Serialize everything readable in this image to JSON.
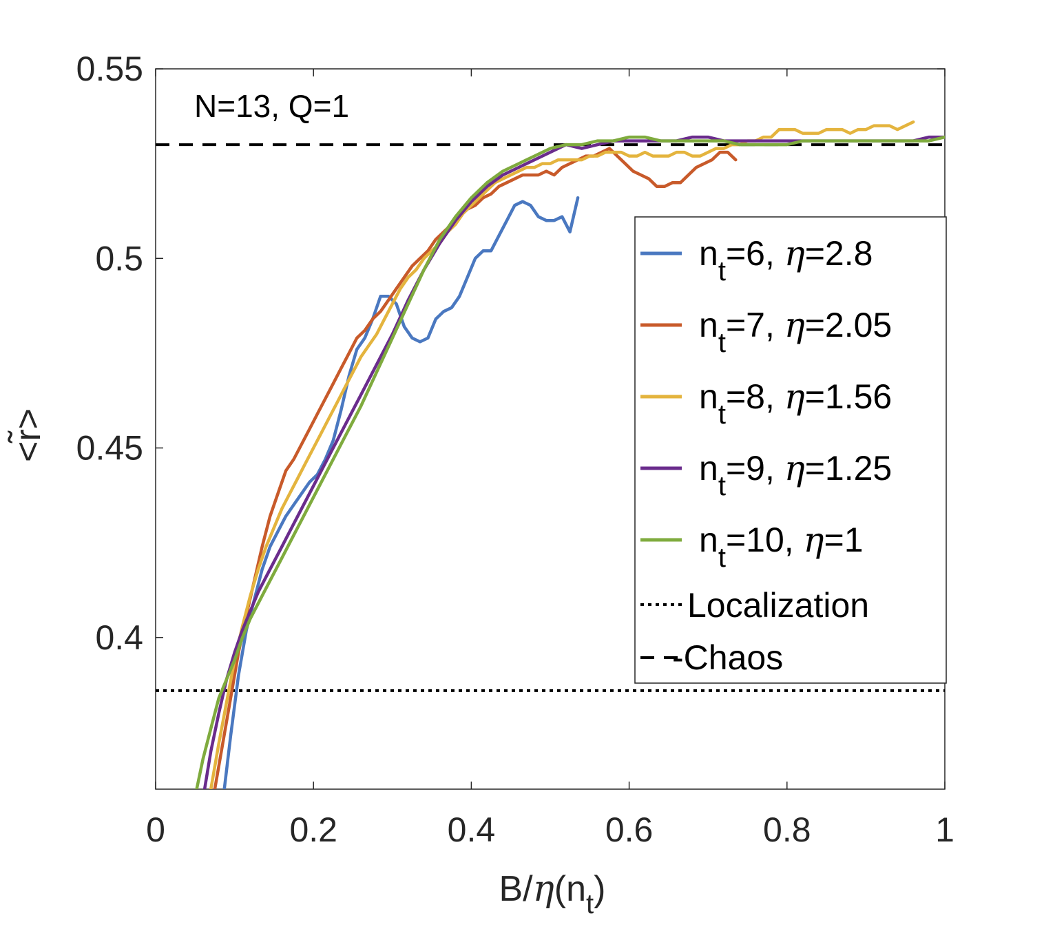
{
  "chart_data": {
    "type": "line",
    "xlabel": {
      "prefix": "B/",
      "eta": "η",
      "mid": "(n",
      "sub": "t",
      "suffix": ")"
    },
    "ylabel": "<r̃>",
    "xlim": [
      0,
      1
    ],
    "ylim": [
      0.36,
      0.55
    ],
    "xticks": [
      0,
      0.2,
      0.4,
      0.6,
      0.8,
      1
    ],
    "xtick_labels": [
      "0",
      "0.2",
      "0.4",
      "0.6",
      "0.8",
      "1"
    ],
    "yticks": [
      0.4,
      0.45,
      0.5,
      0.55
    ],
    "ytick_labels": [
      "0.4",
      "0.45",
      "0.5",
      "0.55"
    ],
    "annotation": "N=13, Q=1",
    "legend_position": "center-right",
    "reference_lines": [
      {
        "name": "Localization",
        "label": "Localization",
        "y": 0.386,
        "style": "dotted",
        "color": "#000000"
      },
      {
        "name": "Chaos",
        "label": "Chaos",
        "legend_extra": "-",
        "y": 0.53,
        "style": "dashed",
        "color": "#000000"
      }
    ],
    "series": [
      {
        "name": "nt=6",
        "label_pre": "n",
        "label_sub": "t",
        "label_mid": "=6, ",
        "eta": "η",
        "label_post": "=2.8",
        "color": "#4a78c0",
        "x": [
          0.087,
          0.095,
          0.105,
          0.115,
          0.125,
          0.135,
          0.145,
          0.155,
          0.165,
          0.175,
          0.185,
          0.195,
          0.205,
          0.215,
          0.225,
          0.235,
          0.245,
          0.255,
          0.265,
          0.275,
          0.285,
          0.295,
          0.305,
          0.315,
          0.325,
          0.335,
          0.345,
          0.355,
          0.365,
          0.375,
          0.385,
          0.395,
          0.405,
          0.415,
          0.425,
          0.435,
          0.445,
          0.455,
          0.465,
          0.475,
          0.485,
          0.495,
          0.505,
          0.515,
          0.525,
          0.535
        ],
        "y": [
          0.36,
          0.374,
          0.39,
          0.402,
          0.41,
          0.418,
          0.424,
          0.428,
          0.432,
          0.435,
          0.438,
          0.441,
          0.443,
          0.447,
          0.452,
          0.46,
          0.469,
          0.476,
          0.479,
          0.484,
          0.49,
          0.49,
          0.488,
          0.482,
          0.479,
          0.478,
          0.479,
          0.484,
          0.486,
          0.487,
          0.49,
          0.495,
          0.5,
          0.502,
          0.502,
          0.506,
          0.51,
          0.514,
          0.515,
          0.514,
          0.511,
          0.51,
          0.51,
          0.511,
          0.507,
          0.516
        ]
      },
      {
        "name": "nt=7",
        "label_pre": "n",
        "label_sub": "t",
        "label_mid": "=7, ",
        "eta": "η",
        "label_post": "=2.05",
        "color": "#c85a2a",
        "x": [
          0.075,
          0.085,
          0.095,
          0.105,
          0.115,
          0.125,
          0.135,
          0.145,
          0.155,
          0.165,
          0.175,
          0.185,
          0.195,
          0.205,
          0.215,
          0.225,
          0.235,
          0.245,
          0.255,
          0.265,
          0.275,
          0.285,
          0.295,
          0.305,
          0.315,
          0.325,
          0.335,
          0.345,
          0.355,
          0.365,
          0.375,
          0.385,
          0.395,
          0.405,
          0.415,
          0.425,
          0.435,
          0.445,
          0.455,
          0.465,
          0.475,
          0.485,
          0.495,
          0.505,
          0.515,
          0.525,
          0.535,
          0.545,
          0.555,
          0.565,
          0.575,
          0.585,
          0.595,
          0.605,
          0.615,
          0.625,
          0.635,
          0.645,
          0.655,
          0.665,
          0.675,
          0.685,
          0.695,
          0.705,
          0.715,
          0.725,
          0.735
        ],
        "y": [
          0.36,
          0.372,
          0.384,
          0.396,
          0.406,
          0.415,
          0.424,
          0.432,
          0.438,
          0.444,
          0.447,
          0.451,
          0.455,
          0.459,
          0.463,
          0.467,
          0.471,
          0.475,
          0.479,
          0.481,
          0.484,
          0.486,
          0.489,
          0.492,
          0.495,
          0.498,
          0.5,
          0.502,
          0.505,
          0.507,
          0.509,
          0.511,
          0.513,
          0.514,
          0.516,
          0.517,
          0.519,
          0.52,
          0.521,
          0.522,
          0.522,
          0.522,
          0.523,
          0.522,
          0.524,
          0.525,
          0.526,
          0.527,
          0.527,
          0.528,
          0.529,
          0.527,
          0.525,
          0.523,
          0.522,
          0.521,
          0.519,
          0.519,
          0.52,
          0.52,
          0.522,
          0.524,
          0.525,
          0.526,
          0.528,
          0.528,
          0.526
        ]
      },
      {
        "name": "nt=8",
        "label_pre": "n",
        "label_sub": "t",
        "label_mid": "=8, ",
        "eta": "η",
        "label_post": "=1.56",
        "color": "#e4b43e",
        "x": [
          0.07,
          0.08,
          0.09,
          0.1,
          0.11,
          0.12,
          0.13,
          0.14,
          0.15,
          0.16,
          0.17,
          0.18,
          0.19,
          0.2,
          0.21,
          0.22,
          0.23,
          0.24,
          0.25,
          0.26,
          0.27,
          0.28,
          0.29,
          0.3,
          0.31,
          0.32,
          0.33,
          0.34,
          0.35,
          0.36,
          0.37,
          0.38,
          0.39,
          0.4,
          0.41,
          0.42,
          0.43,
          0.44,
          0.45,
          0.46,
          0.47,
          0.48,
          0.49,
          0.5,
          0.51,
          0.52,
          0.53,
          0.54,
          0.55,
          0.56,
          0.57,
          0.58,
          0.59,
          0.6,
          0.61,
          0.62,
          0.63,
          0.64,
          0.65,
          0.66,
          0.67,
          0.68,
          0.69,
          0.7,
          0.71,
          0.72,
          0.73,
          0.74,
          0.75,
          0.76,
          0.77,
          0.78,
          0.79,
          0.8,
          0.81,
          0.82,
          0.83,
          0.84,
          0.85,
          0.86,
          0.87,
          0.88,
          0.89,
          0.9,
          0.91,
          0.92,
          0.93,
          0.94,
          0.95,
          0.96
        ],
        "y": [
          0.36,
          0.372,
          0.383,
          0.394,
          0.403,
          0.411,
          0.418,
          0.424,
          0.429,
          0.434,
          0.438,
          0.442,
          0.446,
          0.45,
          0.454,
          0.458,
          0.462,
          0.466,
          0.47,
          0.474,
          0.477,
          0.48,
          0.484,
          0.488,
          0.492,
          0.495,
          0.497,
          0.5,
          0.502,
          0.504,
          0.507,
          0.509,
          0.512,
          0.514,
          0.516,
          0.518,
          0.52,
          0.521,
          0.522,
          0.523,
          0.524,
          0.524,
          0.525,
          0.525,
          0.526,
          0.526,
          0.526,
          0.526,
          0.527,
          0.527,
          0.528,
          0.528,
          0.528,
          0.527,
          0.527,
          0.528,
          0.527,
          0.527,
          0.527,
          0.528,
          0.528,
          0.527,
          0.527,
          0.528,
          0.529,
          0.529,
          0.53,
          0.53,
          0.531,
          0.531,
          0.532,
          0.532,
          0.534,
          0.534,
          0.534,
          0.533,
          0.533,
          0.533,
          0.534,
          0.534,
          0.534,
          0.533,
          0.534,
          0.534,
          0.535,
          0.535,
          0.535,
          0.534,
          0.535,
          0.536
        ]
      },
      {
        "name": "nt=9",
        "label_pre": "n",
        "label_sub": "t",
        "label_mid": "=9, ",
        "eta": "η",
        "label_post": "=1.25",
        "color": "#6a2c8c",
        "x": [
          0.062,
          0.07,
          0.08,
          0.09,
          0.1,
          0.11,
          0.12,
          0.13,
          0.14,
          0.15,
          0.16,
          0.17,
          0.18,
          0.2,
          0.22,
          0.24,
          0.26,
          0.28,
          0.3,
          0.32,
          0.34,
          0.36,
          0.38,
          0.4,
          0.42,
          0.44,
          0.46,
          0.48,
          0.5,
          0.52,
          0.54,
          0.56,
          0.58,
          0.6,
          0.62,
          0.64,
          0.66,
          0.68,
          0.7,
          0.72,
          0.74,
          0.76,
          0.78,
          0.8,
          0.82,
          0.84,
          0.86,
          0.88,
          0.9,
          0.92,
          0.94,
          0.96,
          0.98,
          1.0
        ],
        "y": [
          0.36,
          0.37,
          0.38,
          0.389,
          0.396,
          0.402,
          0.407,
          0.412,
          0.416,
          0.42,
          0.424,
          0.428,
          0.432,
          0.44,
          0.448,
          0.456,
          0.464,
          0.472,
          0.48,
          0.489,
          0.497,
          0.504,
          0.51,
          0.515,
          0.519,
          0.522,
          0.524,
          0.526,
          0.528,
          0.53,
          0.529,
          0.53,
          0.531,
          0.531,
          0.531,
          0.531,
          0.531,
          0.532,
          0.532,
          0.531,
          0.531,
          0.531,
          0.531,
          0.531,
          0.531,
          0.531,
          0.531,
          0.531,
          0.531,
          0.531,
          0.531,
          0.531,
          0.532,
          0.532
        ]
      },
      {
        "name": "nt=10",
        "label_pre": "n",
        "label_sub": "t",
        "label_mid": "=10, ",
        "eta": "η",
        "label_post": "=1",
        "color": "#7fab3e",
        "x": [
          0.052,
          0.06,
          0.07,
          0.08,
          0.09,
          0.1,
          0.11,
          0.12,
          0.13,
          0.14,
          0.15,
          0.16,
          0.17,
          0.18,
          0.2,
          0.22,
          0.24,
          0.26,
          0.28,
          0.3,
          0.32,
          0.34,
          0.36,
          0.38,
          0.4,
          0.42,
          0.44,
          0.46,
          0.48,
          0.5,
          0.52,
          0.54,
          0.56,
          0.58,
          0.6,
          0.62,
          0.64,
          0.66,
          0.68,
          0.7,
          0.72,
          0.74,
          0.76,
          0.78,
          0.8,
          0.82,
          0.84,
          0.86,
          0.88,
          0.9,
          0.92,
          0.94,
          0.96,
          0.98,
          1.0
        ],
        "y": [
          0.36,
          0.368,
          0.376,
          0.384,
          0.389,
          0.394,
          0.4,
          0.405,
          0.409,
          0.413,
          0.417,
          0.421,
          0.425,
          0.429,
          0.437,
          0.445,
          0.453,
          0.461,
          0.47,
          0.479,
          0.488,
          0.497,
          0.505,
          0.511,
          0.516,
          0.52,
          0.523,
          0.525,
          0.527,
          0.529,
          0.53,
          0.53,
          0.531,
          0.531,
          0.532,
          0.532,
          0.531,
          0.531,
          0.531,
          0.531,
          0.531,
          0.53,
          0.53,
          0.53,
          0.53,
          0.531,
          0.531,
          0.531,
          0.531,
          0.531,
          0.531,
          0.531,
          0.531,
          0.531,
          0.532
        ]
      }
    ]
  }
}
